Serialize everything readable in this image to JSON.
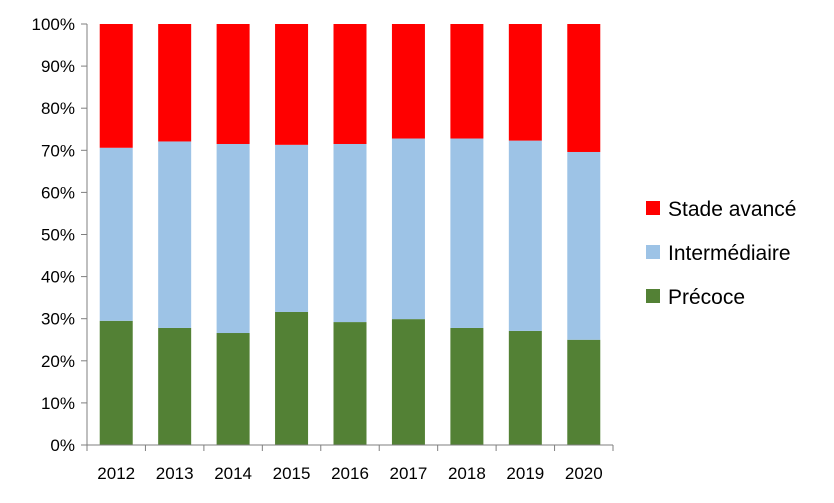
{
  "chart_data": {
    "type": "bar",
    "stacked": true,
    "percent": true,
    "categories": [
      "2012",
      "2013",
      "2014",
      "2015",
      "2016",
      "2017",
      "2018",
      "2019",
      "2020"
    ],
    "series": [
      {
        "name": "Précoce",
        "color": "#538135",
        "values": [
          29.5,
          27.8,
          26.6,
          31.6,
          29.2,
          29.9,
          27.8,
          27.1,
          25.0
        ]
      },
      {
        "name": "Intermédiaire",
        "color": "#9DC3E6",
        "values": [
          41.1,
          44.3,
          44.9,
          39.7,
          42.3,
          42.9,
          45.0,
          45.2,
          44.6
        ]
      },
      {
        "name": "Stade avancé",
        "color": "#FF0000",
        "values": [
          29.4,
          27.9,
          28.5,
          28.7,
          28.5,
          27.2,
          27.2,
          27.7,
          30.4
        ]
      }
    ],
    "y_ticks": [
      "0%",
      "10%",
      "20%",
      "30%",
      "40%",
      "50%",
      "60%",
      "70%",
      "80%",
      "90%",
      "100%"
    ],
    "ylim": [
      0,
      100
    ],
    "grid": false,
    "legend_position": "right",
    "legend_order": [
      "Stade avancé",
      "Intermédiaire",
      "Précoce"
    ]
  }
}
